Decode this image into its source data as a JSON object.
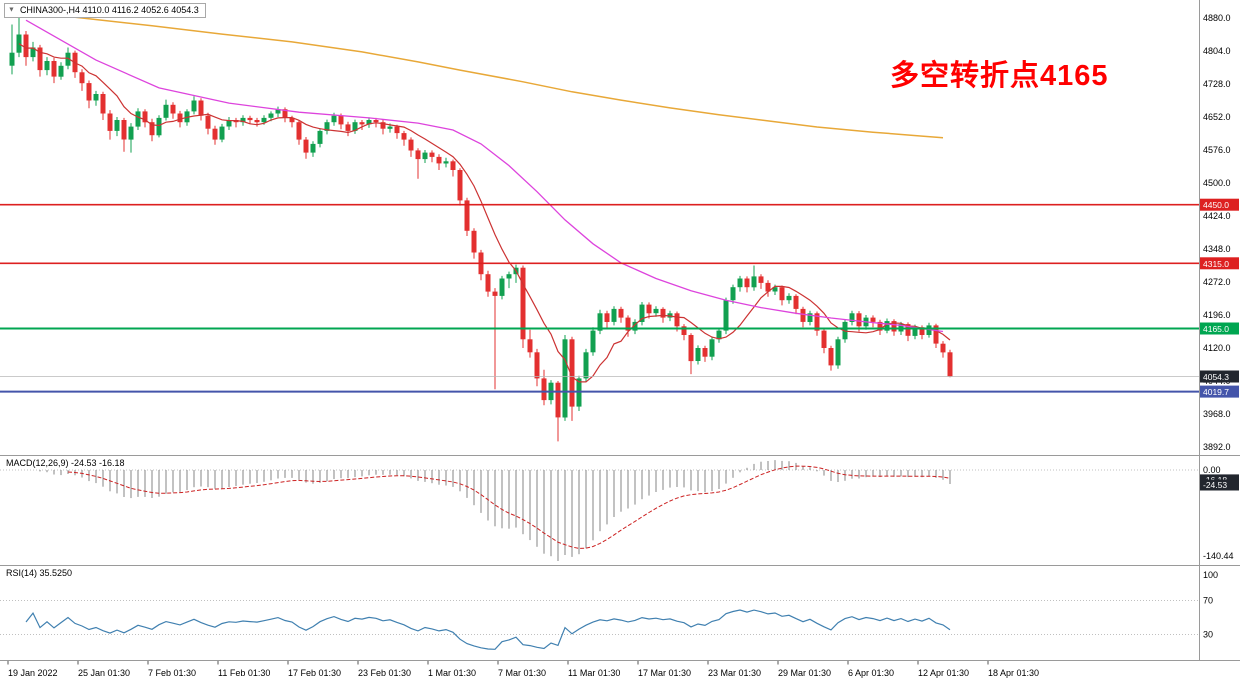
{
  "header": {
    "symbol_info": "CHINA300-,H4  4110.0 4116.2 4052.6 4054.3"
  },
  "annotation": {
    "text": "多空转折点4165",
    "color": "#ff0000"
  },
  "macd_panel": {
    "label": "MACD(12,26,9) -24.53 -16.18"
  },
  "rsi_panel": {
    "label": "RSI(14) 35.5250"
  },
  "chart_data": {
    "type": "candlestick",
    "symbol": "CHINA300-",
    "timeframe": "H4",
    "current_ohlc": {
      "open": 4110.0,
      "high": 4116.2,
      "low": 4052.6,
      "close": 4054.3
    },
    "price_range": [
      3892,
      4880
    ],
    "y_ticks": [
      "4880.0",
      "4804.0",
      "4728.0",
      "4652.0",
      "4576.0",
      "4500.0",
      "4424.0",
      "4348.0",
      "4272.0",
      "4196.0",
      "4120.0",
      "4044.0",
      "3968.0",
      "3892.0"
    ],
    "x_ticks": [
      "19 Jan 2022",
      "25 Jan 01:30",
      "7 Feb 01:30",
      "11 Feb 01:30",
      "17 Feb 01:30",
      "23 Feb 01:30",
      "1 Mar 01:30",
      "7 Mar 01:30",
      "11 Mar 01:30",
      "17 Mar 01:30",
      "23 Mar 01:30",
      "29 Mar 01:30",
      "6 Apr 01:30",
      "12 Apr 01:30",
      "18 Apr 01:30"
    ],
    "up_color": "#12a050",
    "down_color": "#e33030",
    "levels": [
      {
        "price": 4450.0,
        "label": "4450.0",
        "color": "#dd2020",
        "badge": "#dd2020",
        "width": 1.6
      },
      {
        "price": 4315.0,
        "label": "4315.0",
        "color": "#dd2020",
        "badge": "#dd2020",
        "width": 1.6
      },
      {
        "price": 4165.0,
        "label": "4165.0",
        "color": "#00a651",
        "badge": "#00a651",
        "width": 2
      },
      {
        "price": 4054.3,
        "label": "4054.3",
        "color": "#b8b8b8",
        "badge": "#22262e",
        "width": 0.8
      },
      {
        "price": 4019.7,
        "label": "4019.7",
        "color": "#4455aa",
        "badge": "#4455aa",
        "width": 2
      }
    ],
    "ma_fast": {
      "period": 8,
      "color": "#cc3333"
    },
    "ma_mid": {
      "color": "#dd44dd",
      "points": [
        [
          2,
          4875
        ],
        [
          12,
          4783
        ],
        [
          21,
          4719
        ],
        [
          31,
          4684
        ],
        [
          41,
          4663
        ],
        [
          51,
          4650
        ],
        [
          58,
          4638
        ],
        [
          63,
          4622
        ],
        [
          67,
          4590
        ],
        [
          71,
          4540
        ],
        [
          75,
          4480
        ],
        [
          79,
          4415
        ],
        [
          83,
          4360
        ],
        [
          87,
          4316
        ],
        [
          92,
          4280
        ],
        [
          97,
          4252
        ],
        [
          102,
          4230
        ],
        [
          107,
          4213
        ],
        [
          112,
          4200
        ],
        [
          117,
          4189
        ],
        [
          122,
          4180
        ],
        [
          127,
          4172
        ],
        [
          130,
          4165
        ],
        [
          133,
          4158
        ]
      ]
    },
    "ma_slow": {
      "color": "#e8a838",
      "points": [
        [
          0,
          4898
        ],
        [
          10,
          4880
        ],
        [
          20,
          4862
        ],
        [
          30,
          4843
        ],
        [
          40,
          4825
        ],
        [
          50,
          4802
        ],
        [
          58,
          4779
        ],
        [
          64,
          4760
        ],
        [
          73,
          4733
        ],
        [
          80,
          4710
        ],
        [
          87,
          4691
        ],
        [
          94,
          4673
        ],
        [
          101,
          4657
        ],
        [
          108,
          4643
        ],
        [
          115,
          4629
        ],
        [
          123,
          4617
        ],
        [
          130,
          4608
        ],
        [
          133,
          4604
        ]
      ]
    },
    "candles": [
      [
        4770,
        4865,
        4750,
        4800
      ],
      [
        4800,
        4880,
        4790,
        4842
      ],
      [
        4842,
        4850,
        4770,
        4790
      ],
      [
        4790,
        4825,
        4780,
        4812
      ],
      [
        4812,
        4818,
        4745,
        4760
      ],
      [
        4760,
        4790,
        4748,
        4781
      ],
      [
        4781,
        4788,
        4730,
        4745
      ],
      [
        4745,
        4778,
        4738,
        4770
      ],
      [
        4770,
        4812,
        4762,
        4800
      ],
      [
        4800,
        4805,
        4742,
        4755
      ],
      [
        4755,
        4762,
        4712,
        4730
      ],
      [
        4730,
        4736,
        4672,
        4690
      ],
      [
        4690,
        4712,
        4678,
        4705
      ],
      [
        4705,
        4710,
        4645,
        4660
      ],
      [
        4660,
        4668,
        4600,
        4620
      ],
      [
        4620,
        4652,
        4608,
        4645
      ],
      [
        4645,
        4650,
        4572,
        4600
      ],
      [
        4600,
        4638,
        4570,
        4630
      ],
      [
        4630,
        4672,
        4622,
        4665
      ],
      [
        4665,
        4670,
        4628,
        4640
      ],
      [
        4640,
        4648,
        4596,
        4610
      ],
      [
        4610,
        4656,
        4605,
        4650
      ],
      [
        4650,
        4692,
        4644,
        4680
      ],
      [
        4680,
        4686,
        4648,
        4660
      ],
      [
        4660,
        4666,
        4628,
        4640
      ],
      [
        4640,
        4670,
        4632,
        4665
      ],
      [
        4665,
        4700,
        4658,
        4690
      ],
      [
        4690,
        4695,
        4644,
        4655
      ],
      [
        4655,
        4662,
        4612,
        4625
      ],
      [
        4625,
        4632,
        4588,
        4600
      ],
      [
        4600,
        4636,
        4594,
        4630
      ],
      [
        4630,
        4652,
        4622,
        4645
      ],
      [
        4645,
        4650,
        4628,
        4640
      ],
      [
        4640,
        4656,
        4632,
        4650
      ],
      [
        4650,
        4655,
        4636,
        4645
      ],
      [
        4645,
        4650,
        4630,
        4640
      ],
      [
        4640,
        4656,
        4634,
        4650
      ],
      [
        4650,
        4665,
        4642,
        4660
      ],
      [
        4660,
        4676,
        4652,
        4670
      ],
      [
        4670,
        4674,
        4640,
        4650
      ],
      [
        4650,
        4655,
        4628,
        4640
      ],
      [
        4640,
        4645,
        4588,
        4600
      ],
      [
        4600,
        4606,
        4556,
        4570
      ],
      [
        4570,
        4596,
        4560,
        4590
      ],
      [
        4590,
        4626,
        4582,
        4620
      ],
      [
        4620,
        4646,
        4612,
        4640
      ],
      [
        4640,
        4662,
        4632,
        4655
      ],
      [
        4655,
        4660,
        4624,
        4635
      ],
      [
        4635,
        4641,
        4608,
        4620
      ],
      [
        4620,
        4646,
        4613,
        4640
      ],
      [
        4640,
        4645,
        4622,
        4635
      ],
      [
        4635,
        4651,
        4627,
        4645
      ],
      [
        4645,
        4650,
        4628,
        4640
      ],
      [
        4640,
        4646,
        4612,
        4625
      ],
      [
        4625,
        4637,
        4616,
        4630
      ],
      [
        4630,
        4634,
        4602,
        4615
      ],
      [
        4615,
        4620,
        4586,
        4600
      ],
      [
        4600,
        4605,
        4560,
        4575
      ],
      [
        4575,
        4580,
        4510,
        4555
      ],
      [
        4555,
        4576,
        4546,
        4570
      ],
      [
        4570,
        4575,
        4548,
        4560
      ],
      [
        4560,
        4566,
        4530,
        4545
      ],
      [
        4545,
        4558,
        4536,
        4550
      ],
      [
        4550,
        4554,
        4515,
        4530
      ],
      [
        4530,
        4534,
        4448,
        4460
      ],
      [
        4460,
        4466,
        4378,
        4390
      ],
      [
        4390,
        4396,
        4326,
        4340
      ],
      [
        4340,
        4346,
        4276,
        4290
      ],
      [
        4290,
        4298,
        4238,
        4250
      ],
      [
        4250,
        4258,
        4025,
        4240
      ],
      [
        4240,
        4286,
        4232,
        4280
      ],
      [
        4280,
        4296,
        4258,
        4290
      ],
      [
        4290,
        4312,
        4270,
        4305
      ],
      [
        4305,
        4310,
        4120,
        4140
      ],
      [
        4140,
        4162,
        4098,
        4110
      ],
      [
        4110,
        4118,
        4032,
        4050
      ],
      [
        4050,
        4070,
        3988,
        4000
      ],
      [
        4000,
        4046,
        3990,
        4040
      ],
      [
        4040,
        4044,
        3905,
        3960
      ],
      [
        3960,
        4150,
        3952,
        4140
      ],
      [
        4140,
        4146,
        3952,
        3985
      ],
      [
        3985,
        4056,
        3975,
        4050
      ],
      [
        4050,
        4118,
        4042,
        4110
      ],
      [
        4110,
        4168,
        4102,
        4160
      ],
      [
        4160,
        4208,
        4152,
        4200
      ],
      [
        4200,
        4206,
        4166,
        4180
      ],
      [
        4180,
        4216,
        4172,
        4210
      ],
      [
        4210,
        4215,
        4178,
        4190
      ],
      [
        4190,
        4195,
        4146,
        4160
      ],
      [
        4160,
        4186,
        4152,
        4180
      ],
      [
        4180,
        4226,
        4172,
        4220
      ],
      [
        4220,
        4225,
        4188,
        4200
      ],
      [
        4200,
        4216,
        4192,
        4210
      ],
      [
        4210,
        4214,
        4178,
        4190
      ],
      [
        4190,
        4206,
        4182,
        4200
      ],
      [
        4200,
        4204,
        4158,
        4170
      ],
      [
        4170,
        4175,
        4138,
        4150
      ],
      [
        4150,
        4154,
        4060,
        4090
      ],
      [
        4090,
        4126,
        4082,
        4120
      ],
      [
        4120,
        4125,
        4088,
        4100
      ],
      [
        4100,
        4146,
        4092,
        4140
      ],
      [
        4140,
        4166,
        4132,
        4160
      ],
      [
        4160,
        4236,
        4152,
        4230
      ],
      [
        4230,
        4266,
        4222,
        4260
      ],
      [
        4260,
        4286,
        4250,
        4280
      ],
      [
        4280,
        4285,
        4248,
        4260
      ],
      [
        4260,
        4310,
        4252,
        4285
      ],
      [
        4285,
        4290,
        4256,
        4270
      ],
      [
        4270,
        4276,
        4238,
        4250
      ],
      [
        4250,
        4266,
        4242,
        4260
      ],
      [
        4260,
        4264,
        4218,
        4230
      ],
      [
        4230,
        4246,
        4222,
        4240
      ],
      [
        4240,
        4244,
        4198,
        4210
      ],
      [
        4210,
        4215,
        4168,
        4180
      ],
      [
        4180,
        4206,
        4172,
        4200
      ],
      [
        4200,
        4204,
        4148,
        4160
      ],
      [
        4160,
        4165,
        4108,
        4120
      ],
      [
        4120,
        4125,
        4068,
        4080
      ],
      [
        4080,
        4146,
        4072,
        4140
      ],
      [
        4140,
        4186,
        4132,
        4180
      ],
      [
        4180,
        4206,
        4172,
        4200
      ],
      [
        4200,
        4205,
        4158,
        4170
      ],
      [
        4170,
        4196,
        4162,
        4190
      ],
      [
        4190,
        4195,
        4168,
        4180
      ],
      [
        4180,
        4185,
        4150,
        4160
      ],
      [
        4160,
        4188,
        4154,
        4182
      ],
      [
        4182,
        4186,
        4148,
        4158
      ],
      [
        4158,
        4180,
        4150,
        4175
      ],
      [
        4175,
        4179,
        4136,
        4148
      ],
      [
        4148,
        4174,
        4140,
        4168
      ],
      [
        4168,
        4172,
        4140,
        4150
      ],
      [
        4150,
        4178,
        4144,
        4172
      ],
      [
        4172,
        4176,
        4120,
        4130
      ],
      [
        4130,
        4136,
        4098,
        4110
      ],
      [
        4110,
        4116.2,
        4052.6,
        4054.3
      ]
    ],
    "macd": {
      "fast": 12,
      "slow": 26,
      "signal": 9,
      "value_main": -24.53,
      "value_signal": -16.18,
      "axis_min": -140.44,
      "hist_color": "#909090",
      "signal_color": "#cc2222",
      "axis_labels": [
        "0.00",
        "-140.44"
      ],
      "badges": [
        "-16.18",
        "-24.53"
      ]
    },
    "rsi": {
      "period": 14,
      "value": 35.525,
      "color": "#4080b0",
      "axis_labels": [
        "100",
        "70",
        "30"
      ],
      "level_lines": [
        70,
        30
      ]
    }
  }
}
